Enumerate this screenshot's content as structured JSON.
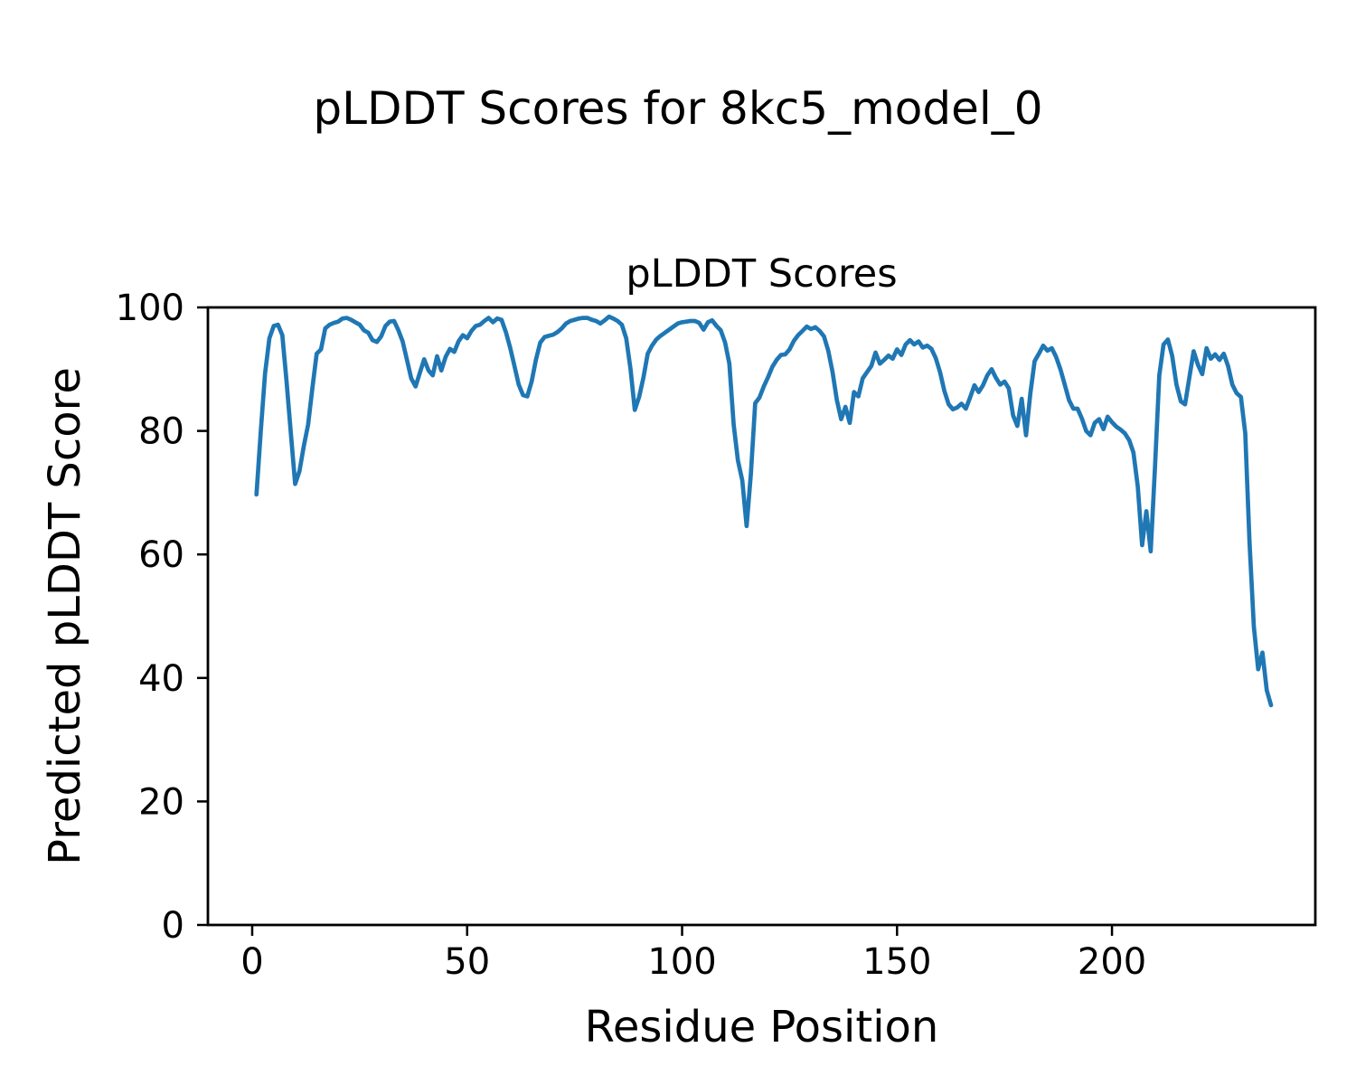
{
  "figure": {
    "title": "pLDDT Scores for 8kc5_model_0"
  },
  "axes": {
    "title": "pLDDT Scores",
    "xlabel": "Residue Position",
    "ylabel": "Predicted pLDDT Score",
    "x_ticks": [
      0,
      50,
      100,
      150,
      200
    ],
    "y_ticks": [
      0,
      20,
      40,
      60,
      80,
      100
    ]
  },
  "chart_data": {
    "type": "line",
    "title": "pLDDT Scores",
    "suptitle": "pLDDT Scores for 8kc5_model_0",
    "xlabel": "Residue Position",
    "ylabel": "Predicted pLDDT Score",
    "x_start": 1,
    "x_step": 1,
    "n_points": 237,
    "xlim": [
      -10.3,
      247.3
    ],
    "ylim": [
      0,
      100
    ],
    "grid": false,
    "legend": null,
    "line_color": "#1f77b4",
    "values": [
      69.7,
      80,
      89.3,
      95,
      97,
      97.2,
      95.5,
      88,
      79.5,
      71.4,
      73.5,
      77.5,
      81,
      87,
      92.5,
      93.2,
      96.6,
      97.2,
      97.5,
      97.7,
      98.2,
      98.3,
      98,
      97.6,
      97.2,
      96.3,
      95.9,
      94.7,
      94.4,
      95.3,
      97,
      97.7,
      97.8,
      96.3,
      94.5,
      91.5,
      88.5,
      87.2,
      89.4,
      91.6,
      89.8,
      89,
      92.1,
      89.8,
      92,
      93.3,
      92.8,
      94.5,
      95.5,
      95,
      96.2,
      97,
      97.2,
      97.8,
      98.3,
      97.6,
      98.2,
      98,
      96,
      93.5,
      90.5,
      87.5,
      85.8,
      85.6,
      88,
      91.5,
      94.3,
      95.2,
      95.4,
      95.6,
      96,
      96.6,
      97.4,
      97.8,
      98,
      98.2,
      98.3,
      98.3,
      98,
      97.8,
      97.4,
      97.9,
      98.5,
      98.2,
      97.8,
      97.2,
      95,
      90,
      83.4,
      85.5,
      88.6,
      92.5,
      93.8,
      94.8,
      95.4,
      95.9,
      96.4,
      96.9,
      97.4,
      97.6,
      97.7,
      97.8,
      97.8,
      97.5,
      96.4,
      97.6,
      97.9,
      97,
      96.3,
      94.3,
      90.9,
      81,
      75.2,
      72,
      64.6,
      73,
      84.5,
      85.4,
      87.2,
      88.7,
      90.4,
      91.5,
      92.3,
      92.4,
      93.2,
      94.6,
      95.5,
      96.2,
      96.9,
      96.5,
      96.8,
      96.2,
      95.3,
      93,
      89.5,
      85,
      81.9,
      83.9,
      81.3,
      86.3,
      85.6,
      88.5,
      89.5,
      90.5,
      92.7,
      90.9,
      91.5,
      92.2,
      91.7,
      93.2,
      92.3,
      94,
      94.7,
      94,
      94.5,
      93.5,
      93.8,
      93.3,
      91.8,
      89.5,
      86.5,
      84.3,
      83.5,
      83.8,
      84.4,
      83.6,
      85.4,
      87.4,
      86.3,
      87.4,
      89,
      90,
      88.6,
      87.5,
      88,
      86.9,
      82.5,
      80.8,
      85.2,
      79.3,
      86,
      91.3,
      92.5,
      93.8,
      93,
      93.4,
      92,
      90,
      87.5,
      85,
      83.6,
      83.6,
      82,
      80,
      79.3,
      81.3,
      81.9,
      80.3,
      82.3,
      81.4,
      80.7,
      80.2,
      79.6,
      78.5,
      76.5,
      71,
      61.5,
      67,
      60.5,
      74,
      89,
      94,
      94.8,
      92.2,
      87.5,
      84.8,
      84.3,
      88.7,
      92.9,
      90.7,
      89.2,
      93.4,
      91.7,
      92.4,
      91.5,
      92.5,
      90.5,
      87.5,
      86.1,
      85.5,
      79.6,
      62,
      48.3,
      41.4,
      44.1,
      38,
      35.6
    ]
  }
}
